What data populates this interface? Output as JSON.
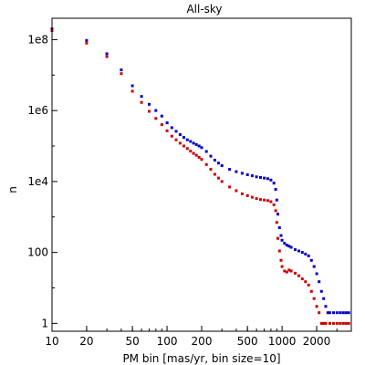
{
  "chart_data": {
    "type": "scatter",
    "title": "All-sky",
    "xlabel": "PM bin [mas/yr, bin size=10]",
    "ylabel": "n",
    "xscale": "log",
    "yscale": "log",
    "xlim": [
      10,
      4000
    ],
    "ylim": [
      0.6,
      400000000
    ],
    "grid": false,
    "legend": "none",
    "x_ticks": [
      {
        "value": 10,
        "label": "10"
      },
      {
        "value": 20,
        "label": "20"
      },
      {
        "value": 50,
        "label": "50"
      },
      {
        "value": 100,
        "label": "100"
      },
      {
        "value": 200,
        "label": "200"
      },
      {
        "value": 500,
        "label": "500"
      },
      {
        "value": 1000,
        "label": "1000"
      },
      {
        "value": 2000,
        "label": "2000"
      }
    ],
    "y_ticks": [
      {
        "value": 1,
        "label": "1"
      },
      {
        "value": 100,
        "label": "100"
      },
      {
        "value": 10000,
        "label": "1e4"
      },
      {
        "value": 1000000,
        "label": "1e6"
      },
      {
        "value": 100000000,
        "label": "1e8"
      }
    ],
    "series": [
      {
        "color": "#0000cc",
        "points": [
          [
            10,
            200000000
          ],
          [
            20,
            95000000
          ],
          [
            30,
            40000000
          ],
          [
            40,
            14000000
          ],
          [
            50,
            5000000
          ],
          [
            60,
            2500000
          ],
          [
            70,
            1500000
          ],
          [
            80,
            1000000
          ],
          [
            90,
            700000
          ],
          [
            100,
            450000
          ],
          [
            110,
            330000
          ],
          [
            120,
            260000
          ],
          [
            130,
            210000
          ],
          [
            140,
            175000
          ],
          [
            150,
            150000
          ],
          [
            160,
            135000
          ],
          [
            170,
            120000
          ],
          [
            180,
            110000
          ],
          [
            190,
            100000
          ],
          [
            200,
            90000
          ],
          [
            220,
            70000
          ],
          [
            240,
            52000
          ],
          [
            260,
            40000
          ],
          [
            280,
            33000
          ],
          [
            300,
            28000
          ],
          [
            350,
            22000
          ],
          [
            400,
            19000
          ],
          [
            450,
            17000
          ],
          [
            500,
            15500
          ],
          [
            550,
            14500
          ],
          [
            600,
            13500
          ],
          [
            650,
            13000
          ],
          [
            700,
            12500
          ],
          [
            750,
            12000
          ],
          [
            800,
            11000
          ],
          [
            850,
            9000
          ],
          [
            880,
            6000
          ],
          [
            900,
            3000
          ],
          [
            920,
            1200
          ],
          [
            950,
            500
          ],
          [
            980,
            300
          ],
          [
            1000,
            220
          ],
          [
            1050,
            180
          ],
          [
            1100,
            160
          ],
          [
            1150,
            150
          ],
          [
            1200,
            140
          ],
          [
            1300,
            120
          ],
          [
            1400,
            110
          ],
          [
            1500,
            100
          ],
          [
            1600,
            90
          ],
          [
            1700,
            80
          ],
          [
            1800,
            60
          ],
          [
            1900,
            40
          ],
          [
            2000,
            25
          ],
          [
            2100,
            15
          ],
          [
            2200,
            8
          ],
          [
            2300,
            5
          ],
          [
            2400,
            3
          ],
          [
            2500,
            2
          ],
          [
            2600,
            2
          ],
          [
            2800,
            2
          ],
          [
            3000,
            2
          ],
          [
            3200,
            2
          ],
          [
            3400,
            2
          ],
          [
            3600,
            2
          ],
          [
            3800,
            2
          ]
        ]
      },
      {
        "color": "#cc0000",
        "points": [
          [
            10,
            180000000
          ],
          [
            20,
            80000000
          ],
          [
            30,
            33000000
          ],
          [
            40,
            11000000
          ],
          [
            50,
            3500000
          ],
          [
            60,
            1700000
          ],
          [
            70,
            950000
          ],
          [
            80,
            600000
          ],
          [
            90,
            400000
          ],
          [
            100,
            270000
          ],
          [
            110,
            190000
          ],
          [
            120,
            150000
          ],
          [
            130,
            120000
          ],
          [
            140,
            100000
          ],
          [
            150,
            85000
          ],
          [
            160,
            72000
          ],
          [
            170,
            62000
          ],
          [
            180,
            55000
          ],
          [
            190,
            48000
          ],
          [
            200,
            42000
          ],
          [
            220,
            30000
          ],
          [
            240,
            22000
          ],
          [
            260,
            16000
          ],
          [
            280,
            12500
          ],
          [
            300,
            10000
          ],
          [
            350,
            7000
          ],
          [
            400,
            5500
          ],
          [
            450,
            4500
          ],
          [
            500,
            4000
          ],
          [
            550,
            3600
          ],
          [
            600,
            3300
          ],
          [
            650,
            3100
          ],
          [
            700,
            3000
          ],
          [
            750,
            2900
          ],
          [
            800,
            2700
          ],
          [
            850,
            2200
          ],
          [
            880,
            1500
          ],
          [
            900,
            700
          ],
          [
            920,
            250
          ],
          [
            950,
            110
          ],
          [
            980,
            60
          ],
          [
            1000,
            40
          ],
          [
            1050,
            30
          ],
          [
            1100,
            28
          ],
          [
            1150,
            32
          ],
          [
            1200,
            30
          ],
          [
            1300,
            26
          ],
          [
            1400,
            22
          ],
          [
            1500,
            18
          ],
          [
            1600,
            15
          ],
          [
            1700,
            12
          ],
          [
            1800,
            8
          ],
          [
            1900,
            5
          ],
          [
            2000,
            3
          ],
          [
            2100,
            2
          ],
          [
            2200,
            1
          ],
          [
            2300,
            1
          ],
          [
            2400,
            1
          ],
          [
            2600,
            1
          ],
          [
            2800,
            1
          ],
          [
            3000,
            1
          ],
          [
            3200,
            1
          ],
          [
            3400,
            1
          ],
          [
            3600,
            1
          ],
          [
            3800,
            1
          ]
        ]
      }
    ]
  }
}
